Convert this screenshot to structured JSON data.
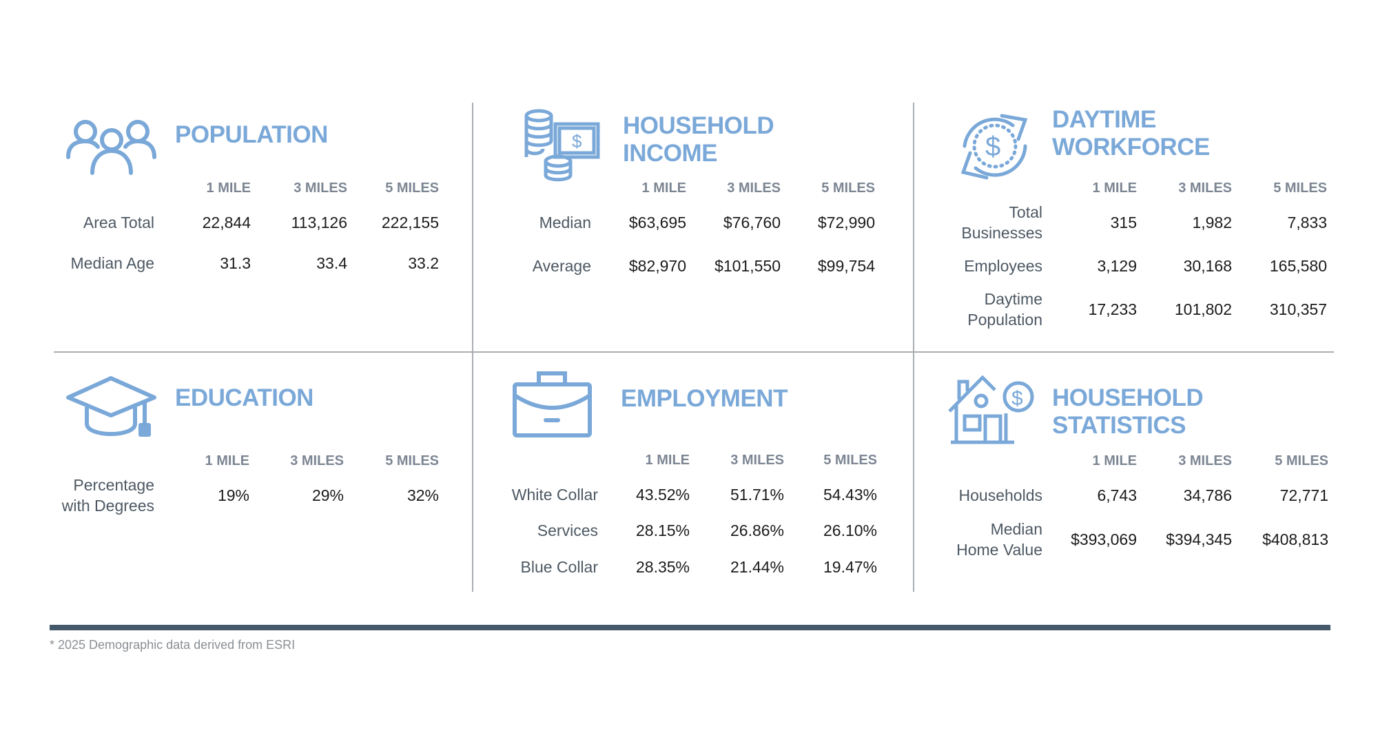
{
  "column_headers": [
    "1 MILE",
    "3 MILES",
    "5 MILES"
  ],
  "accent_color": "#7aa8d8",
  "panels": [
    {
      "title": "POPULATION",
      "icon": "people-icon",
      "rows": [
        {
          "label": "Area Total",
          "values": [
            "22,844",
            "113,126",
            "222,155"
          ]
        },
        {
          "label": "Median Age",
          "values": [
            "31.3",
            "33.4",
            "33.2"
          ]
        }
      ]
    },
    {
      "title": "HOUSEHOLD\nINCOME",
      "icon": "coins-money-icon",
      "rows": [
        {
          "label": "Median",
          "values": [
            "$63,695",
            "$76,760",
            "$72,990"
          ]
        },
        {
          "label": "Average",
          "values": [
            "$82,970",
            "$101,550",
            "$99,754"
          ]
        }
      ]
    },
    {
      "title": "DAYTIME\nWORKFORCE",
      "icon": "dollar-cycle-icon",
      "rows": [
        {
          "label": "Total\nBusinesses",
          "values": [
            "315",
            "1,982",
            "7,833"
          ]
        },
        {
          "label": "Employees",
          "values": [
            "3,129",
            "30,168",
            "165,580"
          ]
        },
        {
          "label": "Daytime\nPopulation",
          "values": [
            "17,233",
            "101,802",
            "310,357"
          ]
        }
      ]
    },
    {
      "title": "EDUCATION",
      "icon": "graduation-cap-icon",
      "rows": [
        {
          "label": "Percentage\nwith Degrees",
          "values": [
            "19%",
            "29%",
            "32%"
          ]
        }
      ]
    },
    {
      "title": "EMPLOYMENT",
      "icon": "briefcase-icon",
      "rows": [
        {
          "label": "White Collar",
          "values": [
            "43.52%",
            "51.71%",
            "54.43%"
          ]
        },
        {
          "label": "Services",
          "values": [
            "28.15%",
            "26.86%",
            "26.10%"
          ]
        },
        {
          "label": "Blue Collar",
          "values": [
            "28.35%",
            "21.44%",
            "19.47%"
          ]
        }
      ]
    },
    {
      "title": "HOUSEHOLD\nSTATISTICS",
      "icon": "house-dollar-icon",
      "rows": [
        {
          "label": "Households",
          "values": [
            "6,743",
            "34,786",
            "72,771"
          ]
        },
        {
          "label": "Median\nHome Value",
          "values": [
            "$393,069",
            "$394,345",
            "$408,813"
          ]
        }
      ]
    }
  ],
  "footnote": "* 2025 Demographic data derived from ESRI"
}
